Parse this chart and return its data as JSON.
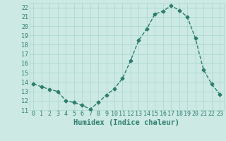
{
  "x": [
    0,
    1,
    2,
    3,
    4,
    5,
    6,
    7,
    8,
    9,
    10,
    11,
    12,
    13,
    14,
    15,
    16,
    17,
    18,
    19,
    20,
    21,
    22,
    23
  ],
  "y": [
    13.8,
    13.5,
    13.2,
    13.0,
    12.0,
    11.8,
    11.5,
    11.1,
    11.8,
    12.6,
    13.3,
    14.4,
    16.3,
    18.5,
    19.7,
    21.3,
    21.6,
    22.2,
    21.7,
    21.0,
    18.7,
    15.3,
    13.8,
    12.7
  ],
  "line_color": "#2e7d6e",
  "marker": "D",
  "markersize": 2.5,
  "linewidth": 1.0,
  "xlabel": "Humidex (Indice chaleur)",
  "xlabel_fontsize": 7.5,
  "background_color": "#cce9e4",
  "grid_color": "#a8d5cc",
  "ylim": [
    11,
    22.5
  ],
  "xlim": [
    -0.5,
    23.5
  ],
  "yticks": [
    11,
    12,
    13,
    14,
    15,
    16,
    17,
    18,
    19,
    20,
    21,
    22
  ],
  "xticks": [
    0,
    1,
    2,
    3,
    4,
    5,
    6,
    7,
    8,
    9,
    10,
    11,
    12,
    13,
    14,
    15,
    16,
    17,
    18,
    19,
    20,
    21,
    22,
    23
  ],
  "tick_fontsize": 6.0,
  "tick_color": "#2e7d6e"
}
